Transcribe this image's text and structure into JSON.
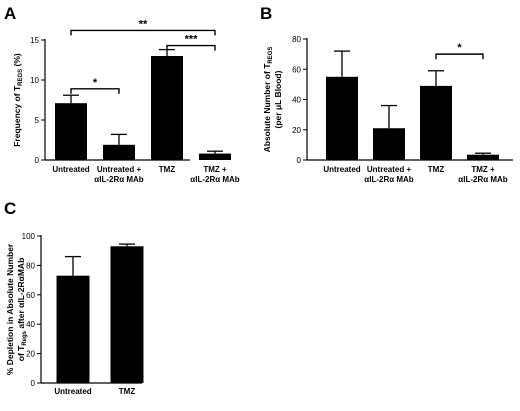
{
  "chart_data": [
    {
      "panel": "A",
      "type": "bar",
      "categories": [
        [
          "Untreated"
        ],
        [
          "Untreated +",
          "αIL-2Rα MAb"
        ],
        [
          "TMZ"
        ],
        [
          "TMZ +",
          "αIL-2Rα MAb"
        ]
      ],
      "values": [
        7.1,
        1.9,
        13.0,
        0.8
      ],
      "errors": [
        1.0,
        1.3,
        0.8,
        0.3
      ],
      "ylabel": "Frequency of T",
      "ylabel_sub": "REGS",
      "ylabel_tail": " (%)",
      "ylim": [
        0,
        15
      ],
      "yticks": [
        0,
        5,
        10,
        15
      ],
      "significance": [
        {
          "from": 0,
          "to": 3,
          "label": "**",
          "level": 16.2
        },
        {
          "from": 0,
          "to": 1,
          "label": "*",
          "level": 8.9
        },
        {
          "from": 2,
          "to": 3,
          "label": "***",
          "level": 14.3
        }
      ]
    },
    {
      "panel": "B",
      "type": "bar",
      "categories": [
        [
          "Untreated"
        ],
        [
          "Untreated +",
          "αIL-2Rα MAb"
        ],
        [
          "TMZ"
        ],
        [
          "TMZ +",
          "αIL-2Rα MAb"
        ]
      ],
      "values": [
        55,
        21,
        49,
        3.5
      ],
      "errors": [
        17,
        15,
        10,
        1
      ],
      "ylabel": "Absolute Number of T",
      "ylabel_sub": "REGS",
      "ylabel2": "(per μL Blood)",
      "ylim": [
        0,
        80
      ],
      "yticks": [
        0,
        20,
        40,
        60,
        80
      ],
      "significance": [
        {
          "from": 2,
          "to": 3,
          "label": "*",
          "level": 70
        }
      ]
    },
    {
      "panel": "C",
      "type": "bar",
      "categories": [
        [
          "Untreated"
        ],
        [
          "TMZ"
        ]
      ],
      "values": [
        73,
        93
      ],
      "errors": [
        13,
        1.5
      ],
      "ylabel": "% Depletion in Absolute Number",
      "ylabel2_pre": "of T",
      "ylabel2_sub": "Regs",
      "ylabel2_tail": " after αIL-2RαMAb",
      "ylim": [
        0,
        100
      ],
      "yticks": [
        0,
        20,
        40,
        60,
        80,
        100
      ],
      "significance": []
    }
  ]
}
